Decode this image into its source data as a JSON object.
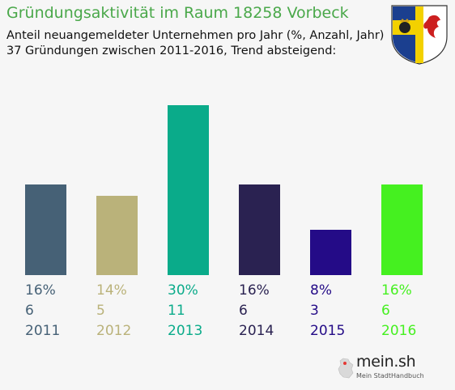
{
  "header": {
    "title": "Gründungsaktivität im Raum 18258 Vorbeck",
    "subtitle_line1": "Anteil neuangemeldeter Unternehmen pro Jahr (%, Anzahl, Jahr)",
    "subtitle_line2": "37 Gründungen zwischen 2011-2016, Trend absteigend:"
  },
  "crest": {
    "icon": "coat-of-arms-icon",
    "colors": [
      "#1b3f8f",
      "#f3d100",
      "#ffffff",
      "#cc1f1f"
    ]
  },
  "chart_data": {
    "type": "bar",
    "categories": [
      "2011",
      "2012",
      "2013",
      "2014",
      "2015",
      "2016"
    ],
    "values": [
      16,
      14,
      30,
      16,
      8,
      16
    ],
    "counts": [
      6,
      5,
      11,
      6,
      3,
      6
    ],
    "percent_labels": [
      "16%",
      "14%",
      "30%",
      "16%",
      "8%",
      "16%"
    ],
    "colors": [
      "#466176",
      "#bab27a",
      "#0aab8a",
      "#2a2251",
      "#240b87",
      "#45f020"
    ],
    "ylim": [
      0,
      30
    ],
    "grid": false,
    "legend": "none"
  },
  "logo": {
    "text": "mein.sh",
    "subtext": "Mein StadtHandbuch"
  }
}
